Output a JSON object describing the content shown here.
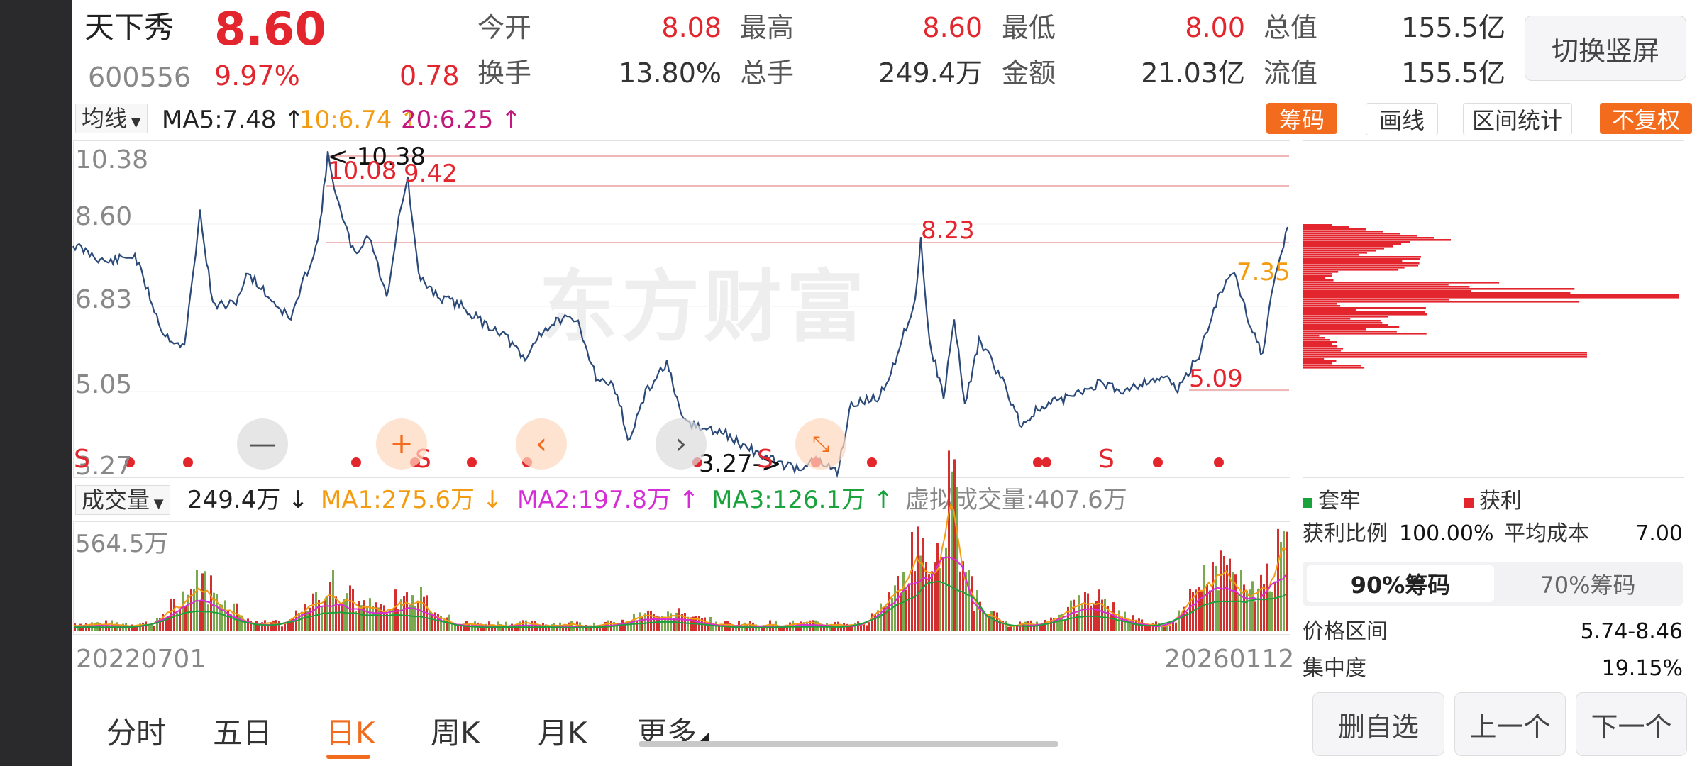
{
  "stock": {
    "name": "天下秀",
    "price": "8.60",
    "code": "600556",
    "pct": "9.97%",
    "change": "0.78"
  },
  "quote": {
    "open_label": "今开",
    "open": "8.08",
    "high_label": "最高",
    "high": "8.60",
    "low_label": "最低",
    "low": "8.00",
    "mcap_label": "总值",
    "mcap": "155.5亿",
    "turnover_label": "换手",
    "turnover": "13.80%",
    "volume_label": "总手",
    "volume": "249.4万",
    "amount_label": "金额",
    "amount": "21.03亿",
    "float_label": "流值",
    "float": "155.5亿"
  },
  "switch_btn": "切换竖屏",
  "ma_bar": {
    "selector": "均线",
    "ma5": "MA5:7.48 ↑",
    "ma10": "10:6.74 ↑",
    "ma20": "20:6.25 ↑"
  },
  "tools": {
    "chips": "筹码",
    "draw": "画线",
    "range": "区间统计",
    "adjust": "不复权"
  },
  "price_axis": [
    "10.38",
    "8.60",
    "6.83",
    "5.05",
    "3.27"
  ],
  "annotations": {
    "high": "<-10.38",
    "a1": "10.08",
    "a2": "9.42",
    "a3": "8.23",
    "a4": "7.35",
    "a5": "5.09",
    "low": "3.27->"
  },
  "watermark": "东方财富",
  "vol_bar": {
    "selector": "成交量",
    "vol": "249.4万 ↓",
    "ma1": "MA1:275.6万 ↓",
    "ma2": "MA2:197.8万 ↑",
    "ma3": "MA3:126.1万 ↑",
    "virtual": "虚拟成交量:407.6万"
  },
  "vol_axis_max": "564.5万",
  "dates": {
    "start": "20220701",
    "end": "20260112"
  },
  "sell_markers": [
    "S",
    "S",
    "S",
    "S"
  ],
  "chips": {
    "legend_trapped": "套牢",
    "legend_profit": "获利",
    "profit_ratio_label": "获利比例",
    "profit_ratio": "100.00%",
    "avg_cost_label": "平均成本",
    "avg_cost": "7.00",
    "tab90": "90%筹码",
    "tab70": "70%筹码",
    "range_label": "价格区间",
    "range": "5.74-8.46",
    "conc_label": "集中度",
    "conc": "19.15%"
  },
  "bottom_tabs": [
    "分时",
    "五日",
    "日K",
    "周K",
    "月K",
    "更多"
  ],
  "actions": {
    "remove": "删自选",
    "prev": "上一个",
    "next": "下一个"
  },
  "colors": {
    "up": "#e3262e",
    "line": "#2b4a7a",
    "orange": "#f39c12",
    "magenta": "#d62ed6",
    "green": "#1aa33c"
  }
}
